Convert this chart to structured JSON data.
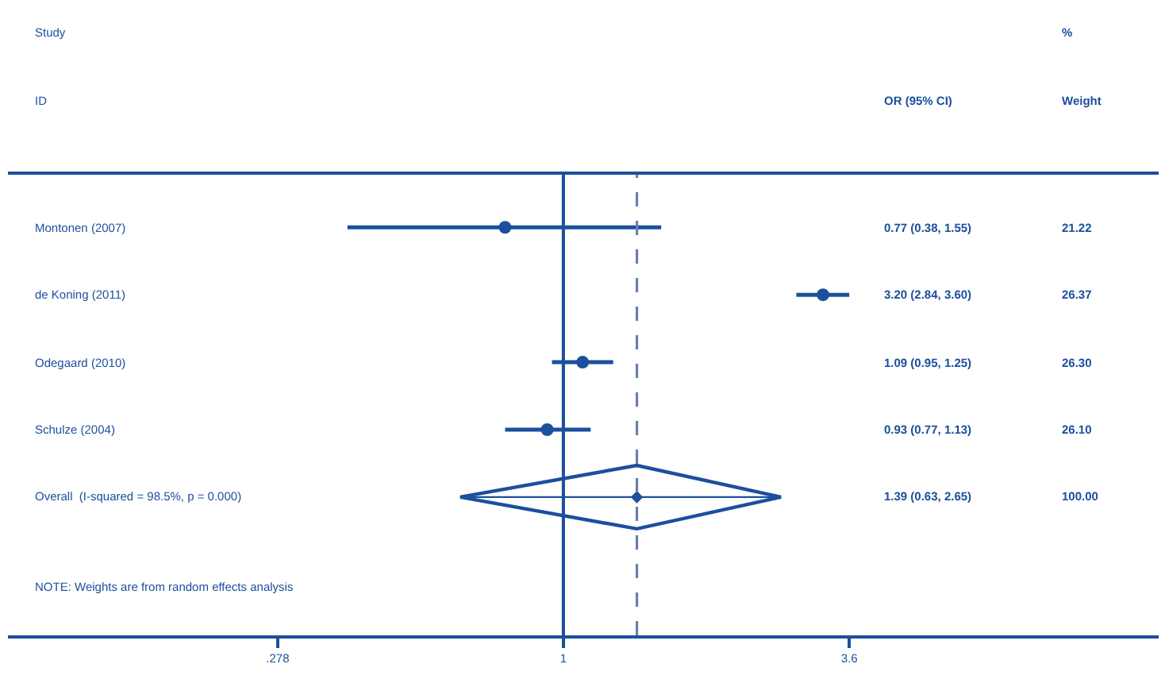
{
  "chart_data": {
    "type": "scatter",
    "orientation": "horizontal",
    "log": "x",
    "categories": [
      "Montonen (2007)",
      "de Koning (2011)",
      "Odegaard (2010)",
      "Schulze (2004)",
      "Overall  (I-squared = 98.5%, p = 0.000)"
    ],
    "xlim": [
      0.083,
      14.4
    ],
    "xticks": [
      {
        "value": 0.278,
        "label": ".278"
      },
      1,
      3.6
    ],
    "series": [
      {
        "color": "#1c4f9c",
        "marker": "circle",
        "values": [
          0.77,
          3.2,
          1.09,
          0.93,
          null
        ],
        "errors": [
          [
            0.38,
            1.55
          ],
          [
            2.84,
            3.6
          ],
          [
            0.95,
            1.25
          ],
          [
            0.77,
            1.13
          ],
          null
        ]
      },
      {
        "color": "#1c4f9c",
        "marker": "diamond",
        "values": [
          null,
          null,
          null,
          null,
          1.39
        ],
        "errors": [
          null,
          null,
          null,
          null,
          [
            0.63,
            2.65
          ]
        ]
      }
    ],
    "ref_lines": [
      {
        "axis": "x",
        "value": 1,
        "line_style": "solid",
        "color": "#1c4f9c"
      },
      {
        "axis": "x",
        "value": 1.39,
        "line_style": "dashed",
        "color": "#6a7fae"
      }
    ],
    "annotations": [
      "Study",
      "%",
      "ID",
      "OR (95% CI)",
      "Weight",
      "NOTE: Weights are from random effects analysis",
      "0.77 (0.38, 1.55)",
      "21.22",
      "3.20 (2.84, 3.60)",
      "26.37",
      "1.09 (0.95, 1.25)",
      "26.30",
      "0.93 (0.77, 1.13)",
      "26.10",
      "1.39 (0.63, 2.65)",
      "100.00"
    ]
  }
}
